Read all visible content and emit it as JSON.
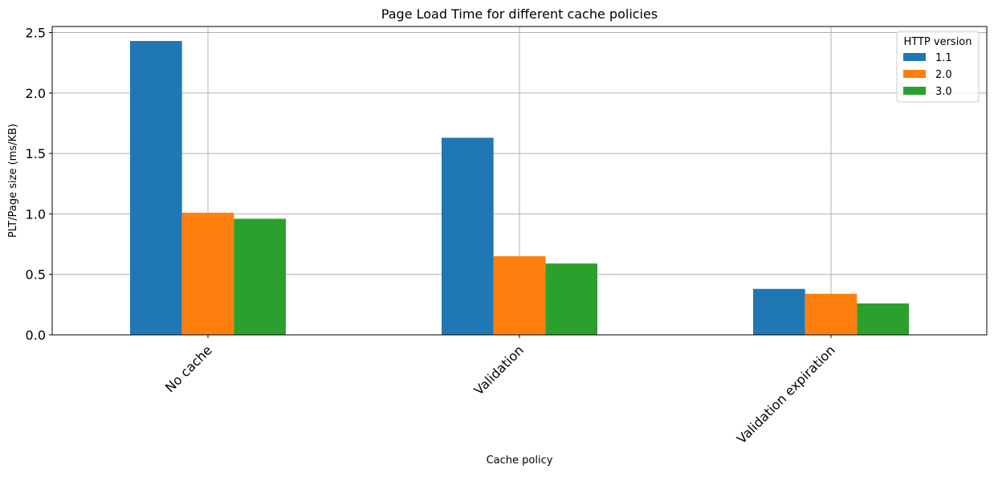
{
  "chart_data": {
    "type": "bar",
    "title": "Page Load Time for different cache policies",
    "xlabel": "Cache policy",
    "ylabel": "PLT/Page size (ms/KB)",
    "categories": [
      "No cache",
      "Validation",
      "Validation expiration"
    ],
    "series": [
      {
        "name": "1.1",
        "values": [
          2.43,
          1.63,
          0.38
        ],
        "color": "#1f77b4"
      },
      {
        "name": "2.0",
        "values": [
          1.01,
          0.65,
          0.34
        ],
        "color": "#ff7f0e"
      },
      {
        "name": "3.0",
        "values": [
          0.96,
          0.59,
          0.26
        ],
        "color": "#2ca02c"
      }
    ],
    "ylim": [
      0,
      2.55
    ],
    "yticks": [
      "0.0",
      "0.5",
      "1.0",
      "1.5",
      "2.0",
      "2.5"
    ],
    "grid": true,
    "legend": {
      "title": "HTTP version",
      "placement": "top-right"
    }
  }
}
